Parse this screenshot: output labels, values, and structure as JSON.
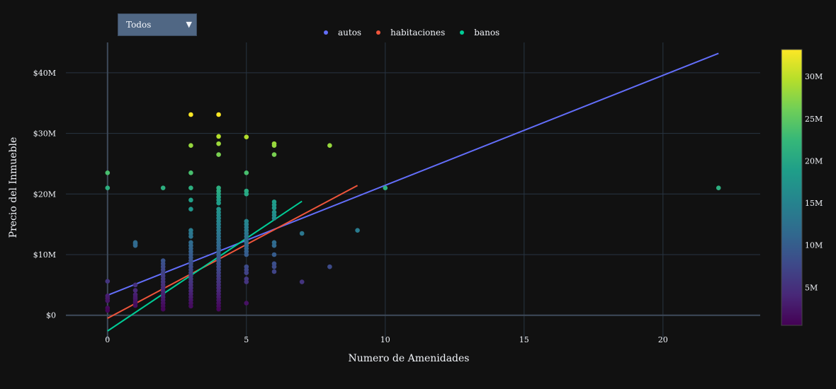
{
  "dropdown": {
    "selected": "Todos",
    "arrow_icon": "triangle-down-icon"
  },
  "colors": {
    "background": "#111111",
    "grid": "#283442",
    "autos": "#636efa",
    "habitaciones": "#ef553b",
    "banos": "#00cc96"
  },
  "chart_data": {
    "type": "scatter",
    "xlabel": "Numero de Amenidades",
    "ylabel": "Precio del Inmueble",
    "xlim": [
      -1.5,
      23.5
    ],
    "ylim": [
      -4000000,
      45000000
    ],
    "x_ticks": [
      0,
      5,
      10,
      15,
      20
    ],
    "y_ticks": [
      0,
      10000000,
      20000000,
      30000000,
      40000000
    ],
    "y_tick_labels": [
      "$0",
      "$10M",
      "$20M",
      "$30M",
      "$40M"
    ],
    "grid": true,
    "legend_placement": "top-center",
    "colorbar": {
      "colorscale": "viridis",
      "range": [
        500000,
        33200000
      ],
      "ticks": [
        5000000,
        10000000,
        15000000,
        20000000,
        25000000,
        30000000
      ],
      "tick_labels": [
        "5M",
        "10M",
        "15M",
        "20M",
        "25M",
        "30M"
      ]
    },
    "series": [
      {
        "name": "autos",
        "type": "line",
        "x": [
          0,
          22
        ],
        "y": [
          3300000,
          43200000
        ]
      },
      {
        "name": "habitaciones",
        "type": "line",
        "x": [
          0,
          9
        ],
        "y": [
          -500000,
          21400000
        ]
      },
      {
        "name": "banos",
        "type": "line",
        "x": [
          0,
          7
        ],
        "y": [
          -2600000,
          18800000
        ]
      }
    ],
    "points": [
      [
        0,
        23500000
      ],
      [
        0,
        21000000
      ],
      [
        0,
        5600000
      ],
      [
        0,
        3200000
      ],
      [
        0,
        2800000
      ],
      [
        0,
        2400000
      ],
      [
        0,
        1200000
      ],
      [
        0,
        800000
      ],
      [
        1,
        12000000
      ],
      [
        1,
        11800000
      ],
      [
        1,
        11500000
      ],
      [
        1,
        5000000
      ],
      [
        1,
        4100000
      ],
      [
        1,
        3400000
      ],
      [
        1,
        3000000
      ],
      [
        1,
        2700000
      ],
      [
        1,
        2300000
      ],
      [
        1,
        2000000
      ],
      [
        1,
        1600000
      ],
      [
        2,
        21000000
      ],
      [
        2,
        9000000
      ],
      [
        2,
        8500000
      ],
      [
        2,
        8000000
      ],
      [
        2,
        7500000
      ],
      [
        2,
        7000000
      ],
      [
        2,
        6500000
      ],
      [
        2,
        6000000
      ],
      [
        2,
        5500000
      ],
      [
        2,
        5000000
      ],
      [
        2,
        4500000
      ],
      [
        2,
        4000000
      ],
      [
        2,
        3500000
      ],
      [
        2,
        3000000
      ],
      [
        2,
        2500000
      ],
      [
        2,
        2000000
      ],
      [
        2,
        1500000
      ],
      [
        2,
        1000000
      ],
      [
        3,
        33100000
      ],
      [
        3,
        28000000
      ],
      [
        3,
        23500000
      ],
      [
        3,
        21000000
      ],
      [
        3,
        19000000
      ],
      [
        3,
        17500000
      ],
      [
        3,
        14000000
      ],
      [
        3,
        13500000
      ],
      [
        3,
        13000000
      ],
      [
        3,
        12000000
      ],
      [
        3,
        11500000
      ],
      [
        3,
        11000000
      ],
      [
        3,
        10500000
      ],
      [
        3,
        10000000
      ],
      [
        3,
        9500000
      ],
      [
        3,
        9000000
      ],
      [
        3,
        8500000
      ],
      [
        3,
        8000000
      ],
      [
        3,
        7500000
      ],
      [
        3,
        7000000
      ],
      [
        3,
        6500000
      ],
      [
        3,
        6000000
      ],
      [
        3,
        5500000
      ],
      [
        3,
        5000000
      ],
      [
        3,
        4500000
      ],
      [
        3,
        4000000
      ],
      [
        3,
        3500000
      ],
      [
        3,
        3000000
      ],
      [
        3,
        2500000
      ],
      [
        3,
        2000000
      ],
      [
        3,
        1500000
      ],
      [
        4,
        33100000
      ],
      [
        4,
        29500000
      ],
      [
        4,
        28300000
      ],
      [
        4,
        26500000
      ],
      [
        4,
        21000000
      ],
      [
        4,
        20500000
      ],
      [
        4,
        20000000
      ],
      [
        4,
        19500000
      ],
      [
        4,
        19000000
      ],
      [
        4,
        18500000
      ],
      [
        4,
        17500000
      ],
      [
        4,
        17000000
      ],
      [
        4,
        16500000
      ],
      [
        4,
        16000000
      ],
      [
        4,
        15500000
      ],
      [
        4,
        15000000
      ],
      [
        4,
        14500000
      ],
      [
        4,
        14000000
      ],
      [
        4,
        13500000
      ],
      [
        4,
        13000000
      ],
      [
        4,
        12500000
      ],
      [
        4,
        12000000
      ],
      [
        4,
        11500000
      ],
      [
        4,
        11000000
      ],
      [
        4,
        10500000
      ],
      [
        4,
        10000000
      ],
      [
        4,
        9500000
      ],
      [
        4,
        9000000
      ],
      [
        4,
        8500000
      ],
      [
        4,
        8000000
      ],
      [
        4,
        7500000
      ],
      [
        4,
        7000000
      ],
      [
        4,
        6500000
      ],
      [
        4,
        6000000
      ],
      [
        4,
        5500000
      ],
      [
        4,
        5000000
      ],
      [
        4,
        4500000
      ],
      [
        4,
        4000000
      ],
      [
        4,
        3500000
      ],
      [
        4,
        3000000
      ],
      [
        4,
        2500000
      ],
      [
        4,
        2000000
      ],
      [
        4,
        1500000
      ],
      [
        4,
        1000000
      ],
      [
        5,
        29400000
      ],
      [
        5,
        23500000
      ],
      [
        5,
        20500000
      ],
      [
        5,
        20000000
      ],
      [
        5,
        15500000
      ],
      [
        5,
        15000000
      ],
      [
        5,
        14500000
      ],
      [
        5,
        14000000
      ],
      [
        5,
        13500000
      ],
      [
        5,
        13000000
      ],
      [
        5,
        12500000
      ],
      [
        5,
        12000000
      ],
      [
        5,
        11500000
      ],
      [
        5,
        11000000
      ],
      [
        5,
        10500000
      ],
      [
        5,
        10000000
      ],
      [
        5,
        8000000
      ],
      [
        5,
        7500000
      ],
      [
        5,
        7000000
      ],
      [
        5,
        6000000
      ],
      [
        5,
        5500000
      ],
      [
        5,
        2000000
      ],
      [
        6,
        28300000
      ],
      [
        6,
        28000000
      ],
      [
        6,
        26500000
      ],
      [
        6,
        18700000
      ],
      [
        6,
        18200000
      ],
      [
        6,
        17700000
      ],
      [
        6,
        17000000
      ],
      [
        6,
        16500000
      ],
      [
        6,
        16000000
      ],
      [
        6,
        12000000
      ],
      [
        6,
        11500000
      ],
      [
        6,
        10000000
      ],
      [
        6,
        8500000
      ],
      [
        6,
        8000000
      ],
      [
        6,
        7200000
      ],
      [
        7,
        13500000
      ],
      [
        7,
        5500000
      ],
      [
        8,
        28000000
      ],
      [
        8,
        8000000
      ],
      [
        9,
        14000000
      ],
      [
        10,
        21000000
      ],
      [
        22,
        21000000
      ]
    ]
  }
}
